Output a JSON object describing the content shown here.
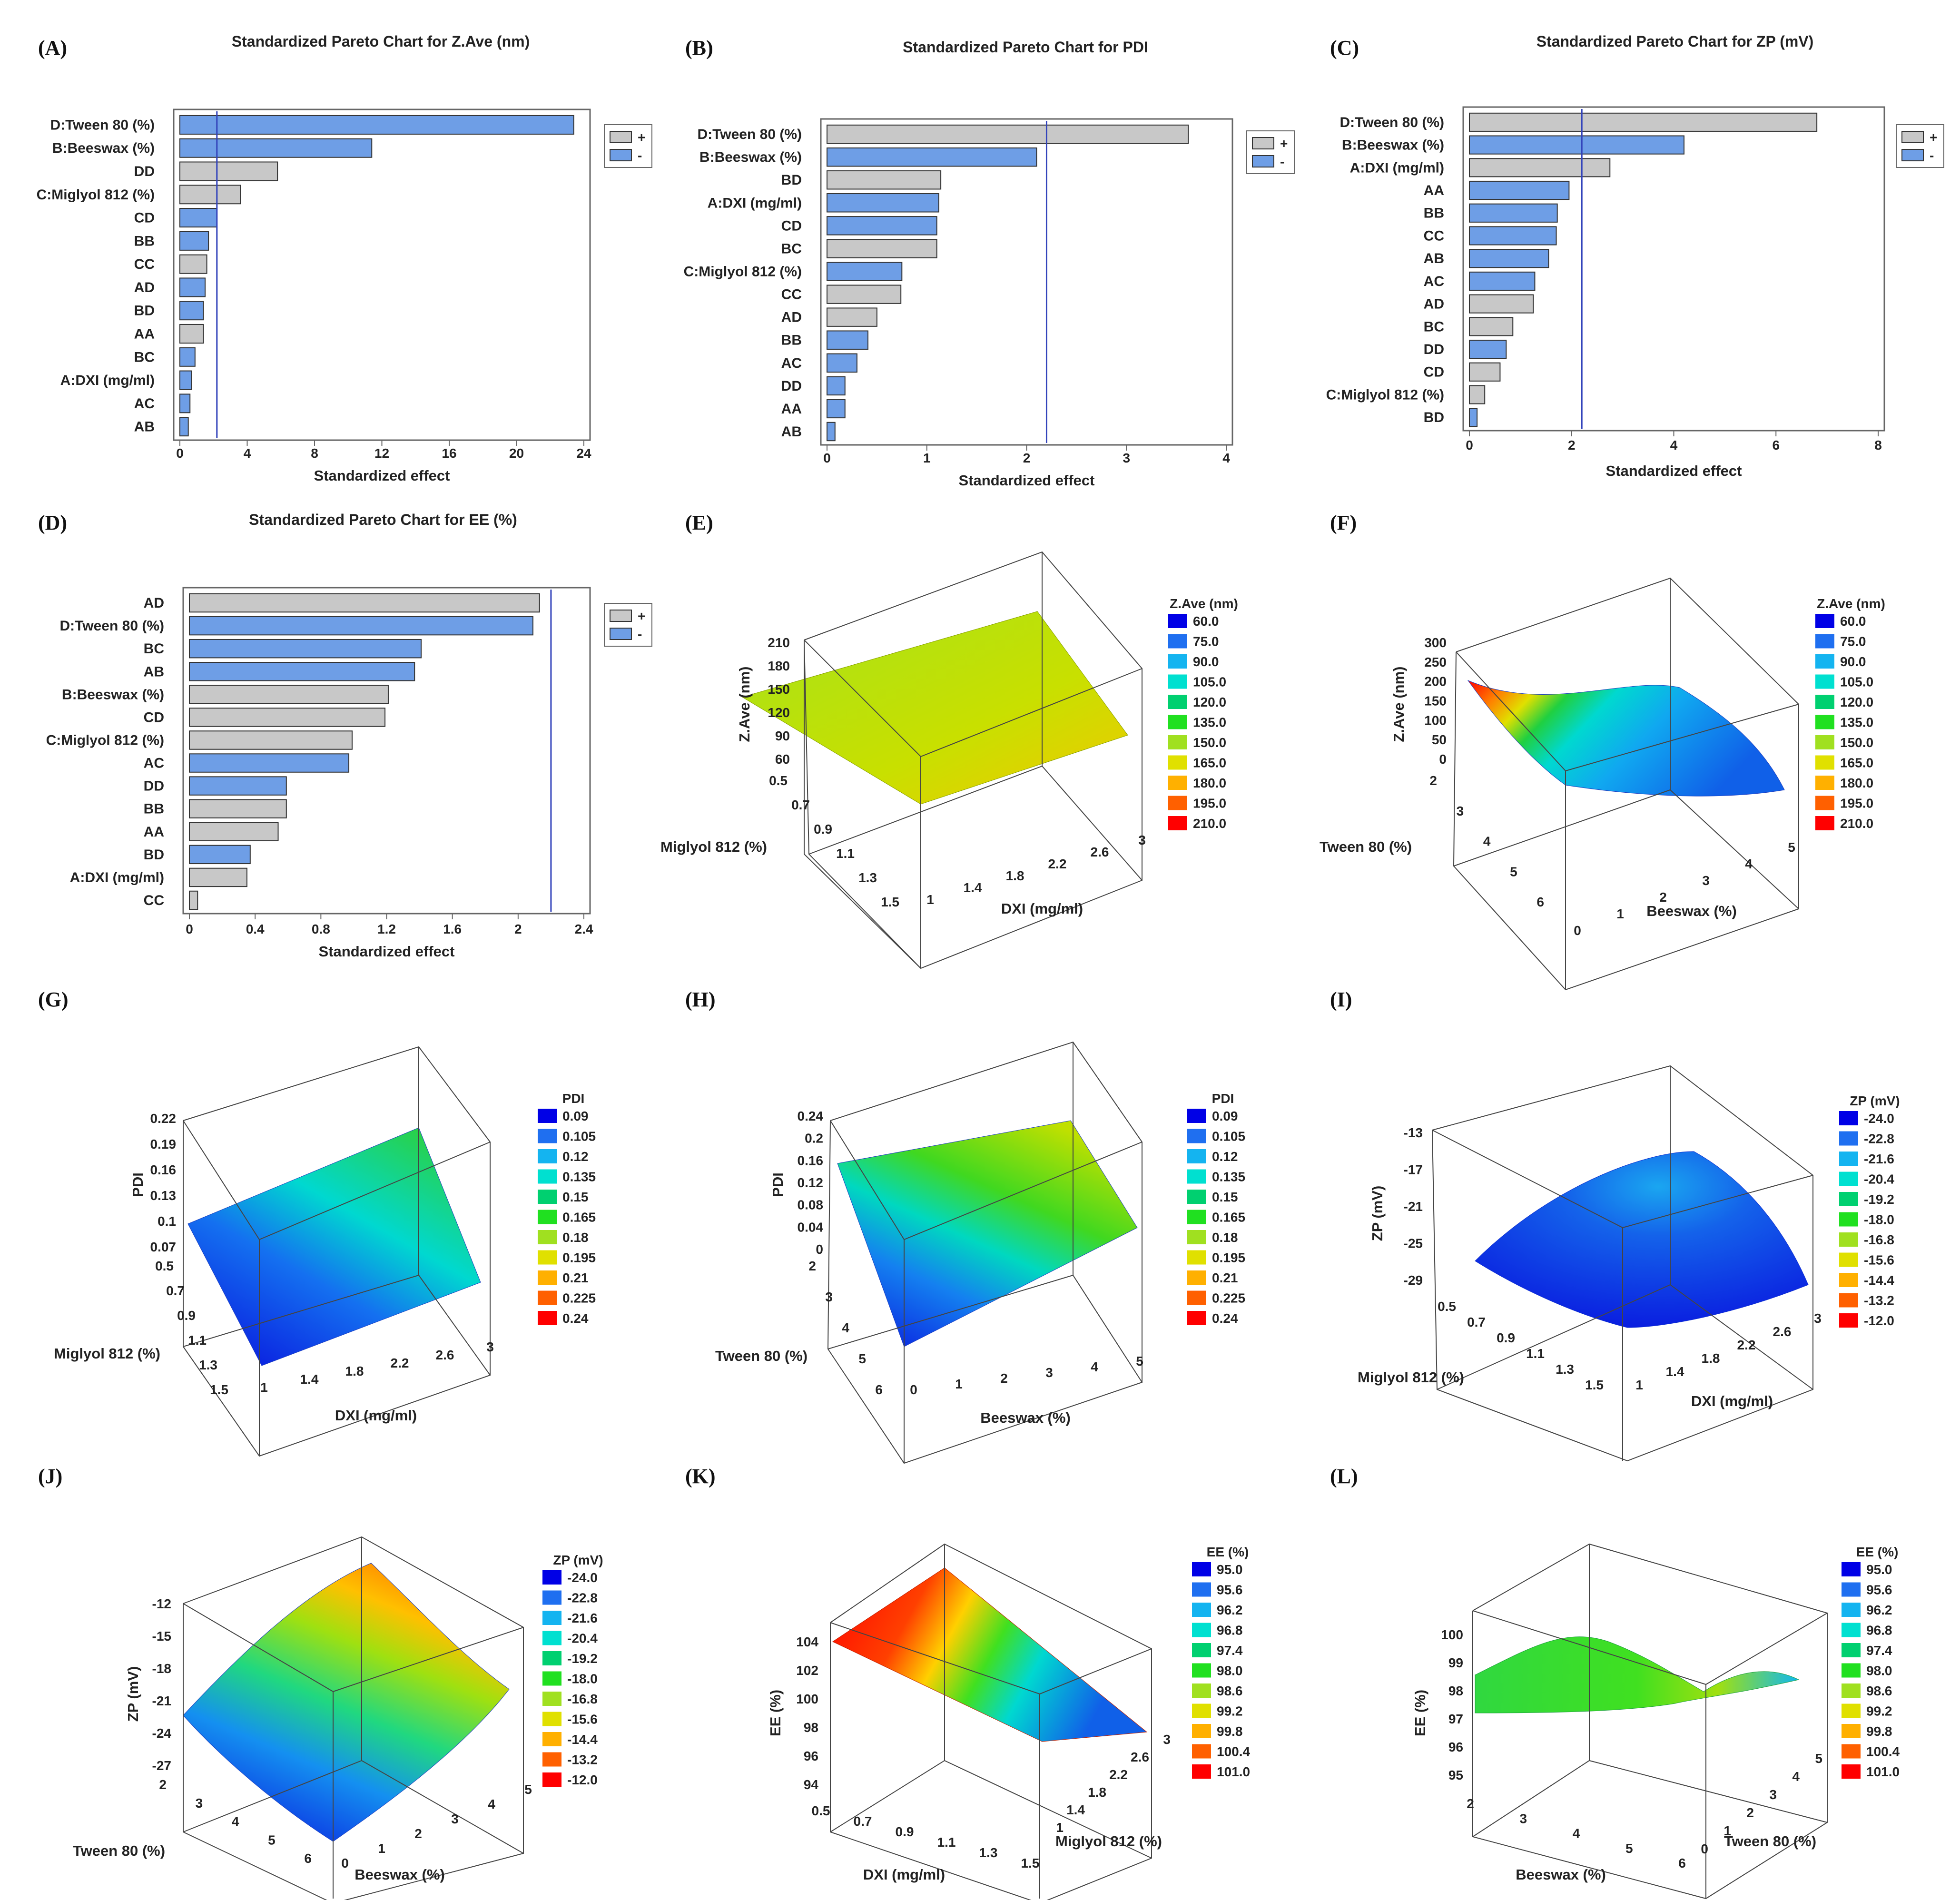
{
  "chart_data": [
    {
      "panel": "(A)",
      "type": "bar",
      "orientation": "horizontal",
      "title": "Standardized Pareto Chart for Z.Ave (nm)",
      "xlabel": "Standardized effect",
      "xlim": [
        0,
        24
      ],
      "xticks": [
        0,
        4,
        8,
        12,
        16,
        20,
        24
      ],
      "reference_line": 2.2,
      "legend": [
        "+",
        "-"
      ],
      "legend_placement": "right",
      "categories": [
        "D:Tween 80 (%)",
        "B:Beeswax (%)",
        "DD",
        "C:Miglyol 812 (%)",
        "CD",
        "BB",
        "CC",
        "AD",
        "BD",
        "AA",
        "BC",
        "A:DXI (mg/ml)",
        "AC",
        "AB"
      ],
      "values": [
        23.4,
        11.4,
        5.8,
        3.6,
        2.2,
        1.7,
        1.6,
        1.5,
        1.4,
        1.4,
        0.9,
        0.7,
        0.6,
        0.5
      ],
      "signs": [
        "-",
        "-",
        "+",
        "+",
        "-",
        "-",
        "+",
        "-",
        "-",
        "+",
        "-",
        "-",
        "-",
        "-"
      ]
    },
    {
      "panel": "(B)",
      "type": "bar",
      "orientation": "horizontal",
      "title": "Standardized Pareto Chart for PDI",
      "xlabel": "Standardized effect",
      "xlim": [
        0,
        4
      ],
      "xticks": [
        0,
        1,
        2,
        3,
        4
      ],
      "reference_line": 2.2,
      "legend": [
        "+",
        "-"
      ],
      "legend_placement": "right",
      "categories": [
        "D:Tween 80 (%)",
        "B:Beeswax (%)",
        "BD",
        "A:DXI (mg/ml)",
        "CD",
        "BC",
        "C:Miglyol 812 (%)",
        "CC",
        "AD",
        "BB",
        "AC",
        "DD",
        "AA",
        "AB"
      ],
      "values": [
        3.62,
        2.1,
        1.14,
        1.12,
        1.1,
        1.1,
        0.75,
        0.74,
        0.5,
        0.41,
        0.3,
        0.18,
        0.18,
        0.08
      ],
      "signs": [
        "+",
        "-",
        "+",
        "-",
        "-",
        "+",
        "-",
        "+",
        "+",
        "-",
        "-",
        "-",
        "-",
        "-"
      ]
    },
    {
      "panel": "(C)",
      "type": "bar",
      "orientation": "horizontal",
      "title": "Standardized Pareto Chart for ZP (mV)",
      "xlabel": "Standardized effect",
      "xlim": [
        0,
        8
      ],
      "xticks": [
        0,
        2,
        4,
        6,
        8
      ],
      "reference_line": 2.2,
      "legend": [
        "+",
        "-"
      ],
      "legend_placement": "right",
      "categories": [
        "D:Tween 80 (%)",
        "B:Beeswax (%)",
        "A:DXI (mg/ml)",
        "AA",
        "BB",
        "CC",
        "AB",
        "AC",
        "AD",
        "BC",
        "DD",
        "CD",
        "C:Miglyol 812 (%)",
        "BD"
      ],
      "values": [
        6.8,
        4.2,
        2.75,
        1.95,
        1.72,
        1.7,
        1.55,
        1.28,
        1.25,
        0.85,
        0.72,
        0.6,
        0.3,
        0.15
      ],
      "signs": [
        "+",
        "-",
        "+",
        "-",
        "-",
        "-",
        "-",
        "-",
        "+",
        "+",
        "-",
        "+",
        "+",
        "-"
      ]
    },
    {
      "panel": "(D)",
      "type": "bar",
      "orientation": "horizontal",
      "title": "Standardized Pareto Chart for EE (%)",
      "xlabel": "Standardized effect",
      "xlim": [
        0,
        2.4
      ],
      "xticks": [
        0,
        0.4,
        0.8,
        1.2,
        1.6,
        2,
        2.4
      ],
      "reference_line": 2.2,
      "legend": [
        "+",
        "-"
      ],
      "legend_placement": "right",
      "categories": [
        "AD",
        "D:Tween 80 (%)",
        "BC",
        "AB",
        "B:Beeswax (%)",
        "CD",
        "C:Miglyol 812 (%)",
        "AC",
        "DD",
        "BB",
        "AA",
        "BD",
        "A:DXI (mg/ml)",
        "CC"
      ],
      "values": [
        2.13,
        2.09,
        1.41,
        1.37,
        1.21,
        1.19,
        0.99,
        0.97,
        0.59,
        0.59,
        0.54,
        0.37,
        0.35,
        0.05
      ],
      "signs": [
        "+",
        "-",
        "-",
        "-",
        "+",
        "+",
        "+",
        "-",
        "-",
        "+",
        "+",
        "-",
        "+",
        "+"
      ]
    },
    {
      "panel": "(E)",
      "type": "surface",
      "zlabel": "Z.Ave (nm)",
      "xlabel": "DXI (mg/ml)",
      "ylabel": "Miglyol 812 (%)",
      "xticks": [
        "1",
        "1.4",
        "1.8",
        "2.2",
        "2.6",
        "3"
      ],
      "yticks": [
        "0.5",
        "0.7",
        "0.9",
        "1.1",
        "1.3",
        "1.5"
      ],
      "zticks": [
        "60",
        "90",
        "120",
        "150",
        "180",
        "210"
      ],
      "legend_title": "Z.Ave (nm)",
      "legend_values": [
        "60.0",
        "75.0",
        "90.0",
        "105.0",
        "120.0",
        "135.0",
        "150.0",
        "165.0",
        "180.0",
        "195.0",
        "210.0"
      ]
    },
    {
      "panel": "(F)",
      "type": "surface",
      "zlabel": "Z.Ave (nm)",
      "xlabel": "Beeswax (%)",
      "ylabel": "Tween 80 (%)",
      "xticks": [
        "0",
        "1",
        "2",
        "3",
        "4",
        "5"
      ],
      "yticks": [
        "2",
        "3",
        "4",
        "5",
        "6"
      ],
      "zticks": [
        "0",
        "50",
        "100",
        "150",
        "200",
        "250",
        "300"
      ],
      "legend_title": "Z.Ave (nm)",
      "legend_values": [
        "60.0",
        "75.0",
        "90.0",
        "105.0",
        "120.0",
        "135.0",
        "150.0",
        "165.0",
        "180.0",
        "195.0",
        "210.0"
      ]
    },
    {
      "panel": "(G)",
      "type": "surface",
      "zlabel": "PDI",
      "xlabel": "DXI (mg/ml)",
      "ylabel": "Miglyol 812 (%)",
      "xticks": [
        "1",
        "1.4",
        "1.8",
        "2.2",
        "2.6",
        "3"
      ],
      "yticks": [
        "0.5",
        "0.7",
        "0.9",
        "1.1",
        "1.3",
        "1.5"
      ],
      "zticks": [
        "0.07",
        "0.1",
        "0.13",
        "0.16",
        "0.19",
        "0.22"
      ],
      "legend_title": "PDI",
      "legend_values": [
        "0.09",
        "0.105",
        "0.12",
        "0.135",
        "0.15",
        "0.165",
        "0.18",
        "0.195",
        "0.21",
        "0.225",
        "0.24"
      ]
    },
    {
      "panel": "(H)",
      "type": "surface",
      "zlabel": "PDI",
      "xlabel": "Beeswax (%)",
      "ylabel": "Tween 80 (%)",
      "xticks": [
        "0",
        "1",
        "2",
        "3",
        "4",
        "5"
      ],
      "yticks": [
        "2",
        "3",
        "4",
        "5",
        "6"
      ],
      "zticks": [
        "0",
        "0.04",
        "0.08",
        "0.12",
        "0.16",
        "0.2",
        "0.24"
      ],
      "legend_title": "PDI",
      "legend_values": [
        "0.09",
        "0.105",
        "0.12",
        "0.135",
        "0.15",
        "0.165",
        "0.18",
        "0.195",
        "0.21",
        "0.225",
        "0.24"
      ]
    },
    {
      "panel": "(I)",
      "type": "surface",
      "zlabel": "ZP (mV)",
      "xlabel": "DXI (mg/ml)",
      "ylabel": "Miglyol 812 (%)",
      "xticks": [
        "1",
        "1.4",
        "1.8",
        "2.2",
        "2.6",
        "3"
      ],
      "yticks": [
        "0.5",
        "0.7",
        "0.9",
        "1.1",
        "1.3",
        "1.5"
      ],
      "zticks": [
        "-29",
        "-25",
        "-21",
        "-17",
        "-13"
      ],
      "legend_title": "ZP (mV)",
      "legend_values": [
        "-24.0",
        "-22.8",
        "-21.6",
        "-20.4",
        "-19.2",
        "-18.0",
        "-16.8",
        "-15.6",
        "-14.4",
        "-13.2",
        "-12.0"
      ]
    },
    {
      "panel": "(J)",
      "type": "surface",
      "zlabel": "ZP (mV)",
      "xlabel": "Beeswax (%)",
      "ylabel": "Tween 80 (%)",
      "xticks": [
        "0",
        "1",
        "2",
        "3",
        "4",
        "5"
      ],
      "yticks": [
        "2",
        "3",
        "4",
        "5",
        "6"
      ],
      "zticks": [
        "-27",
        "-24",
        "-21",
        "-18",
        "-15",
        "-12"
      ],
      "legend_title": "ZP (mV)",
      "legend_values": [
        "-24.0",
        "-22.8",
        "-21.6",
        "-20.4",
        "-19.2",
        "-18.0",
        "-16.8",
        "-15.6",
        "-14.4",
        "-13.2",
        "-12.0"
      ]
    },
    {
      "panel": "(K)",
      "type": "surface",
      "zlabel": "EE (%)",
      "xlabel": "DXI (mg/ml)",
      "ylabel": "Miglyol 812 (%)",
      "xticks": [
        "0.5",
        "0.7",
        "0.9",
        "1.1",
        "1.3",
        "1.5"
      ],
      "yticks": [
        "1",
        "1.4",
        "1.8",
        "2.2",
        "2.6",
        "3"
      ],
      "zticks": [
        "94",
        "96",
        "98",
        "100",
        "102",
        "104"
      ],
      "legend_title": "EE (%)",
      "legend_values": [
        "95.0",
        "95.6",
        "96.2",
        "96.8",
        "97.4",
        "98.0",
        "98.6",
        "99.2",
        "99.8",
        "100.4",
        "101.0"
      ]
    },
    {
      "panel": "(L)",
      "type": "surface",
      "zlabel": "EE (%)",
      "xlabel": "Beeswax (%)",
      "ylabel": "Tween 80 (%)",
      "xticks": [
        "2",
        "3",
        "4",
        "5",
        "6"
      ],
      "yticks": [
        "0",
        "1",
        "2",
        "3",
        "4",
        "5"
      ],
      "zticks": [
        "95",
        "96",
        "97",
        "98",
        "99",
        "100"
      ],
      "legend_title": "EE (%)",
      "legend_values": [
        "95.0",
        "95.6",
        "96.2",
        "96.8",
        "97.4",
        "98.0",
        "98.6",
        "99.2",
        "99.8",
        "100.4",
        "101.0"
      ]
    }
  ],
  "colors": {
    "positive_bar": "#c8c8c8",
    "negative_bar": "#6e9ee6",
    "reference_line": "#3344bb",
    "colormap": [
      "#0000e6",
      "#1f6ff0",
      "#14b4f0",
      "#00e0d0",
      "#00d070",
      "#20e020",
      "#a0e020",
      "#e0e000",
      "#ffb000",
      "#ff6000",
      "#ff0000"
    ]
  }
}
